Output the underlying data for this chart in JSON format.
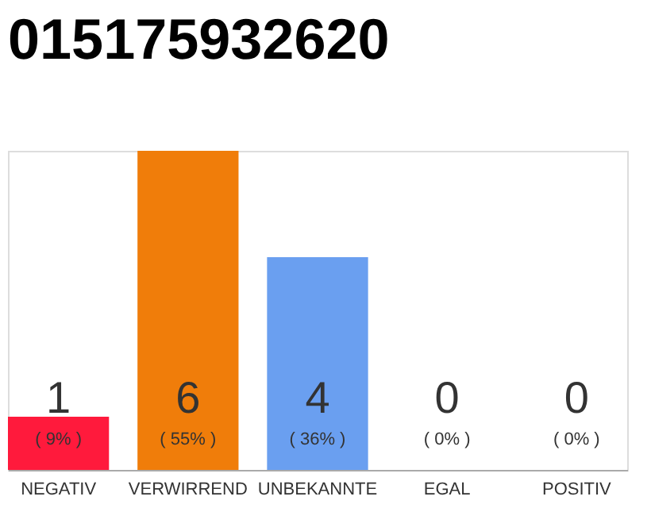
{
  "chart_data": {
    "type": "bar",
    "title": "015175932620",
    "categories": [
      "NEGATIV",
      "VERWIRREND",
      "UNBEKANNTE",
      "EGAL",
      "POSITIV"
    ],
    "values": [
      1,
      6,
      4,
      0,
      0
    ],
    "colors": [
      "#ff1a3c",
      "#f07d0a",
      "#6a9ff0",
      "#6a9ff0",
      "#6a9ff0"
    ],
    "ylim": [
      0,
      6
    ],
    "tick_labels": "x",
    "data_labels": true,
    "annotations": [
      "( 9% )",
      "( 55% )",
      "( 36% )",
      "( 0% )",
      "( 0% )"
    ]
  }
}
